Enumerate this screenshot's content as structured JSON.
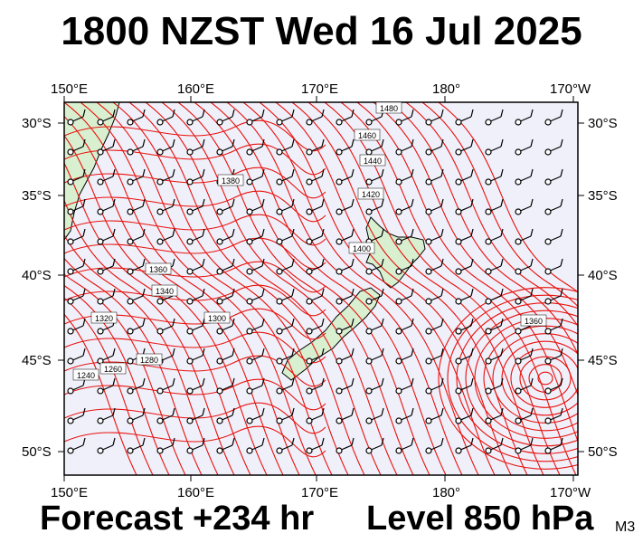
{
  "header": {
    "title": "1800 NZST Wed 16 Jul 2025"
  },
  "footer": {
    "forecast": "Forecast +234 hr",
    "level": "Level 850 hPa",
    "model": "M3"
  },
  "axes": {
    "lon_labels": [
      "150°E",
      "160°E",
      "170°E",
      "180°",
      "170°W"
    ],
    "lat_labels": [
      "30°S",
      "35°S",
      "40°S",
      "45°S",
      "50°S"
    ]
  },
  "contour_labels": [
    "1480",
    "1460",
    "1440",
    "1420",
    "1400",
    "1380",
    "1360",
    "1340",
    "1320",
    "1300",
    "1280",
    "1260",
    "1240",
    "1360"
  ],
  "colors": {
    "contour": "#e8120c",
    "ocean": "#f0f0fb",
    "land": "#d8f0d0",
    "coast": "#000000"
  },
  "chart_data": {
    "type": "map",
    "projection": "lat-lon",
    "lon_range": [
      150,
      191
    ],
    "lat_range": [
      -51.5,
      -28.5
    ],
    "field": "850 hPa geopotential height (m)",
    "contour_interval": 20,
    "features": [
      "low centre near 46°S 171°W",
      "trough over New Zealand"
    ]
  }
}
